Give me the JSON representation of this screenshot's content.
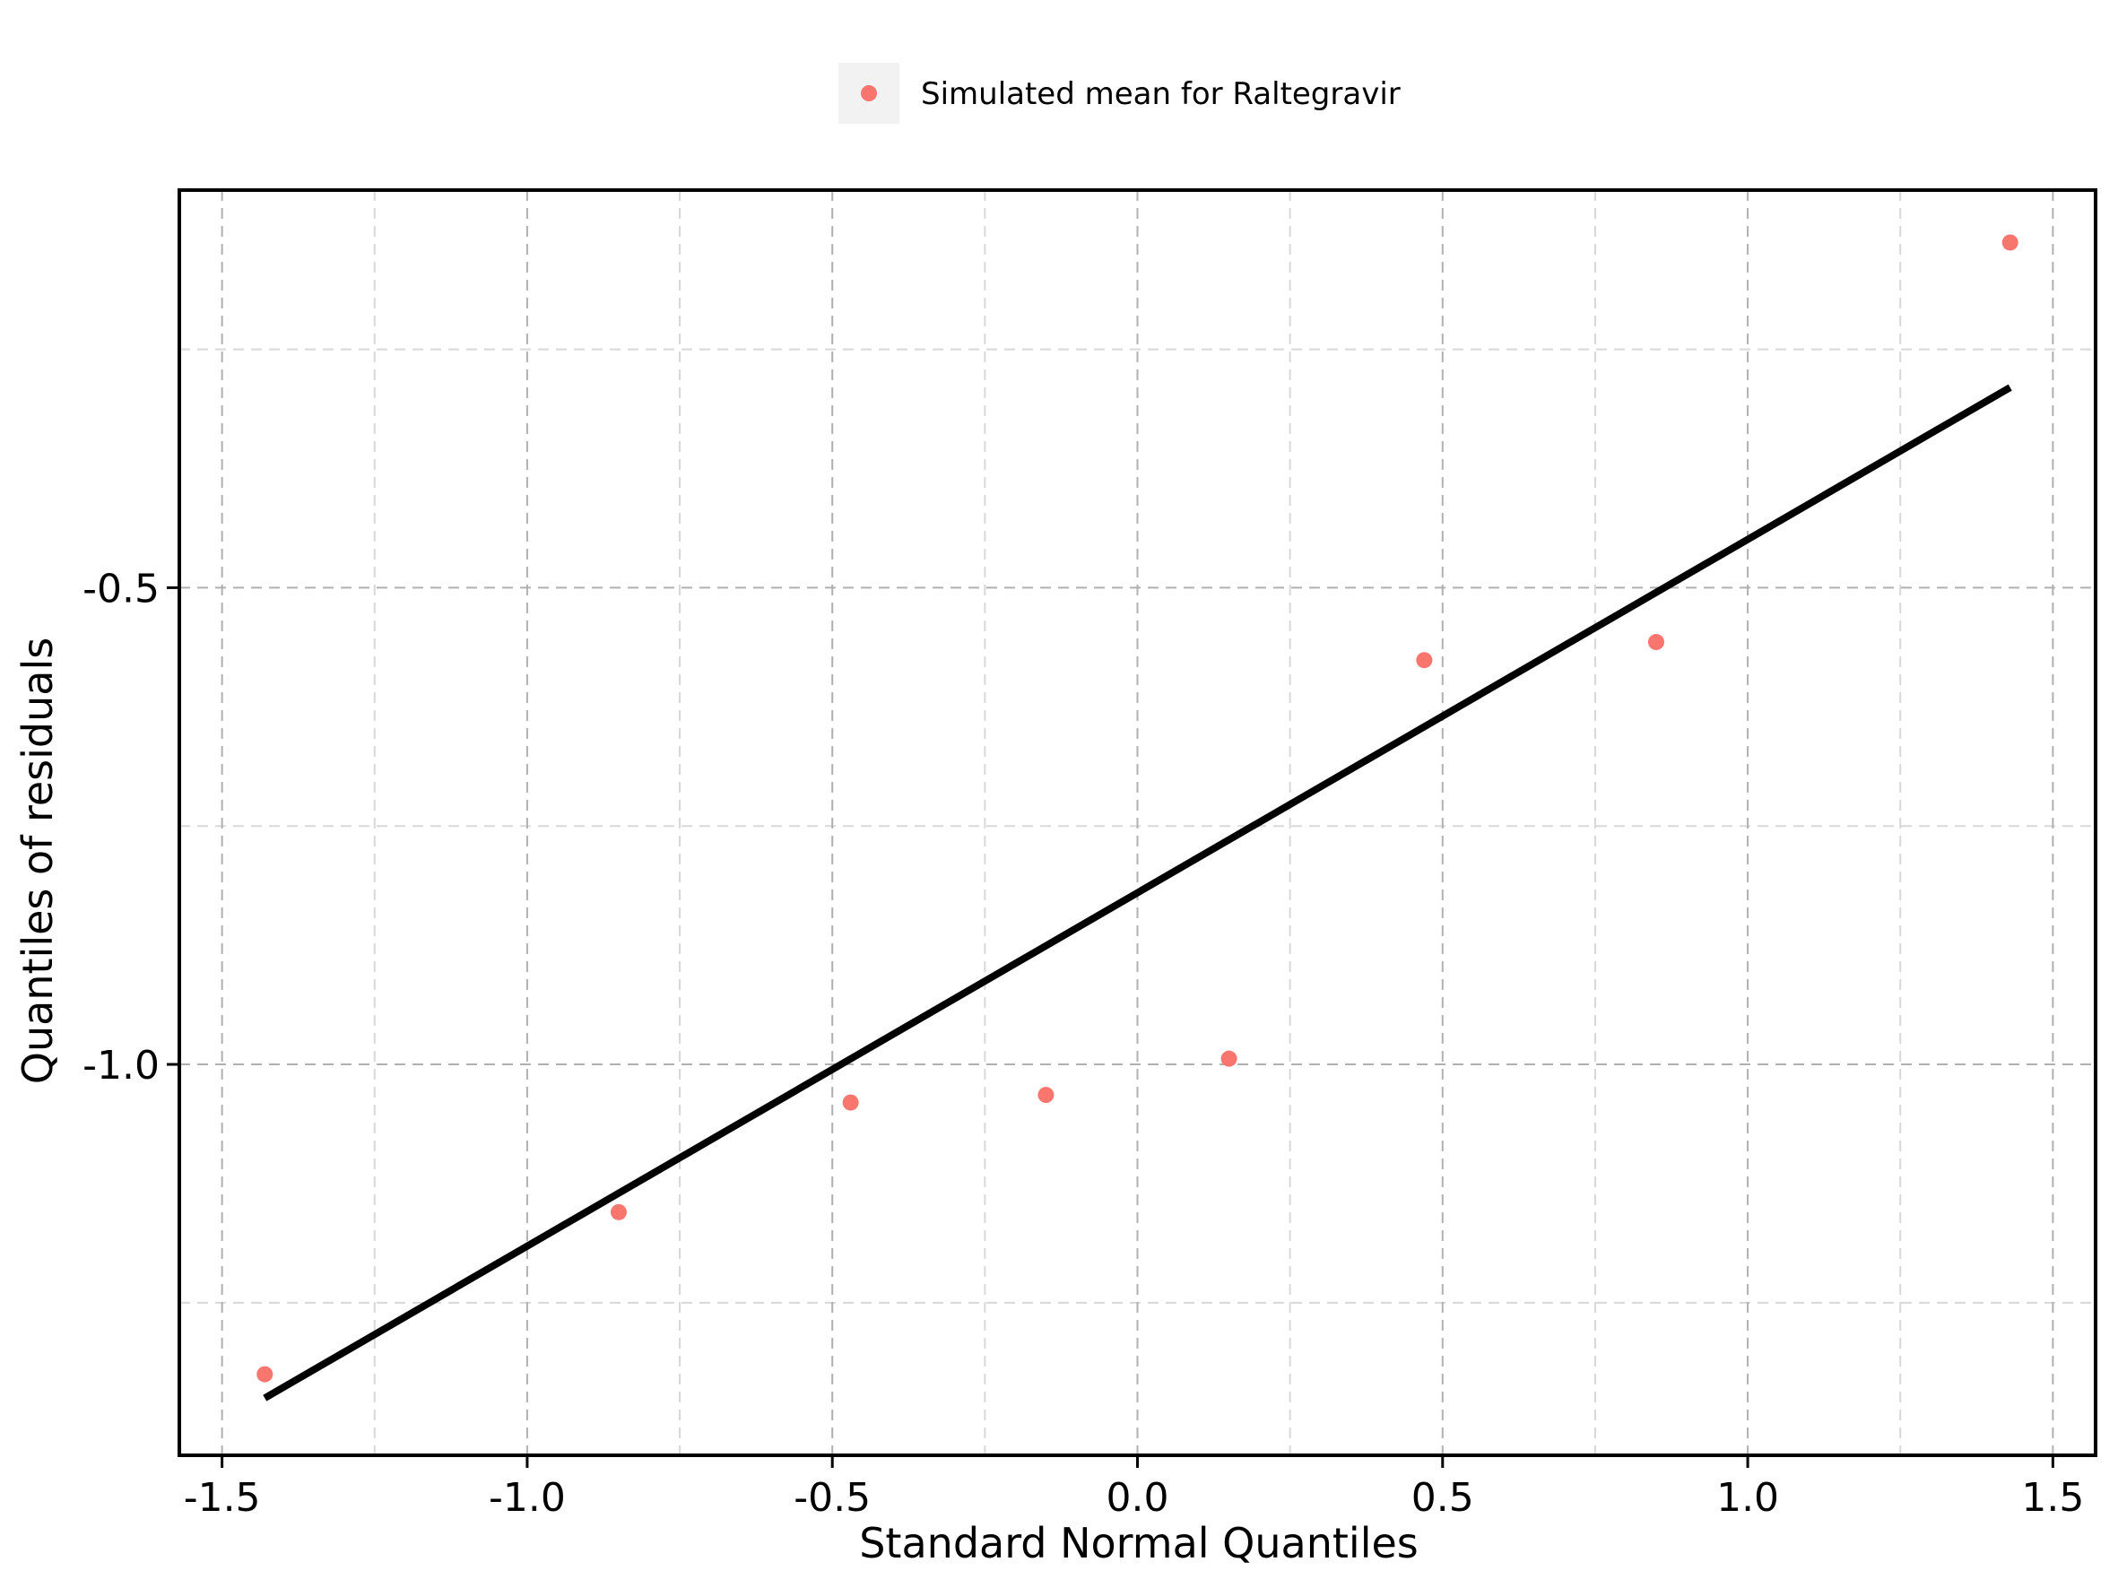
{
  "chart_data": {
    "type": "scatter",
    "title": "",
    "xlabel": "Standard Normal Quantiles",
    "ylabel": "Quantiles of residuals",
    "xlim": [
      -1.57,
      1.57
    ],
    "ylim": [
      -1.41,
      -0.083
    ],
    "xticks": [
      -1.5,
      -1.0,
      -0.5,
      0.0,
      0.5,
      1.0,
      1.5
    ],
    "xtick_labels": [
      "-1.5",
      "-1.0",
      "-0.5",
      "0.0",
      "0.5",
      "1.0",
      "1.5"
    ],
    "yticks": [
      -0.5,
      -1.0
    ],
    "ytick_labels": [
      "-0.5",
      "-1.0"
    ],
    "grid": true,
    "legend": {
      "position": "top-center"
    },
    "series": [
      {
        "name": "Simulated mean for Raltegravir",
        "color": "#f8766d",
        "x": [
          -1.43,
          -0.85,
          -0.47,
          -0.15,
          0.15,
          0.47,
          0.85,
          1.43
        ],
        "y": [
          -1.325,
          -1.155,
          -1.04,
          -1.032,
          -0.994,
          -0.576,
          -0.557,
          -0.138
        ]
      }
    ],
    "reference_line": {
      "color": "#000000",
      "x": [
        -1.43,
        1.43
      ],
      "y": [
        -1.35,
        -0.29
      ]
    }
  }
}
